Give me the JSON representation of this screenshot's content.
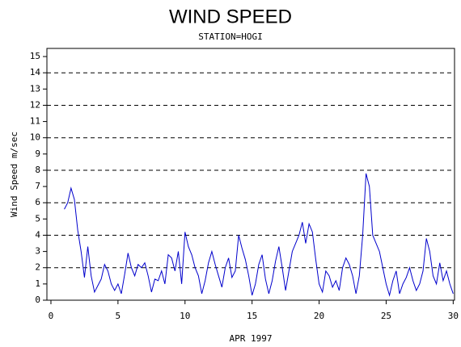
{
  "chart_data": {
    "type": "line",
    "title": "WIND SPEED",
    "subtitle": "STATION=HOGI",
    "y_label": "Wind Speed m/sec",
    "x_label": "APR 1997",
    "x": [
      1,
      1.25,
      1.5,
      1.75,
      2,
      2.25,
      2.5,
      2.75,
      3,
      3.25,
      3.5,
      3.75,
      4,
      4.25,
      4.5,
      4.75,
      5,
      5.25,
      5.5,
      5.75,
      6,
      6.25,
      6.5,
      6.75,
      7,
      7.25,
      7.5,
      7.75,
      8,
      8.25,
      8.5,
      8.75,
      9,
      9.25,
      9.5,
      9.75,
      10,
      10.25,
      10.5,
      10.75,
      11,
      11.25,
      11.5,
      11.75,
      12,
      12.25,
      12.5,
      12.75,
      13,
      13.25,
      13.5,
      13.75,
      14,
      14.25,
      14.5,
      14.75,
      15,
      15.25,
      15.5,
      15.75,
      16,
      16.25,
      16.5,
      16.75,
      17,
      17.25,
      17.5,
      17.75,
      18,
      18.25,
      18.5,
      18.75,
      19,
      19.25,
      19.5,
      19.75,
      20,
      20.25,
      20.5,
      20.75,
      21,
      21.25,
      21.5,
      21.75,
      22,
      22.25,
      22.5,
      22.75,
      23,
      23.25,
      23.5,
      23.75,
      24,
      24.25,
      24.5,
      24.75,
      25,
      25.25,
      25.5,
      25.75,
      26,
      26.25,
      26.5,
      26.75,
      27,
      27.25,
      27.5,
      27.75,
      28,
      28.25,
      28.5,
      28.75,
      29,
      29.25,
      29.5,
      29.75,
      30
    ],
    "series": [
      {
        "name": "Wind Speed",
        "color": "#0000cc",
        "values": [
          5.6,
          6.0,
          6.9,
          6.2,
          4.3,
          3.0,
          1.4,
          3.3,
          1.5,
          0.5,
          0.9,
          1.3,
          2.2,
          1.8,
          1.0,
          0.6,
          1.0,
          0.4,
          1.6,
          2.9,
          2.0,
          1.5,
          2.2,
          2.0,
          2.3,
          1.5,
          0.5,
          1.3,
          1.2,
          1.8,
          1.0,
          2.8,
          2.6,
          1.8,
          3.0,
          1.0,
          4.2,
          3.3,
          2.8,
          2.0,
          1.5,
          0.4,
          1.2,
          2.3,
          3.0,
          2.2,
          1.5,
          0.8,
          2.0,
          2.6,
          1.4,
          1.8,
          4.0,
          3.2,
          2.5,
          1.5,
          0.3,
          1.0,
          2.2,
          2.8,
          1.3,
          0.4,
          1.2,
          2.4,
          3.3,
          2.0,
          0.6,
          1.8,
          3.0,
          3.5,
          4.0,
          4.8,
          3.5,
          4.7,
          4.2,
          2.5,
          1.0,
          0.5,
          1.8,
          1.5,
          0.8,
          1.2,
          0.6,
          2.0,
          2.6,
          2.2,
          1.5,
          0.4,
          1.5,
          4.0,
          7.8,
          7.0,
          4.0,
          3.5,
          3.0,
          2.0,
          1.0,
          0.3,
          1.2,
          1.8,
          0.4,
          1.0,
          1.4,
          2.0,
          1.2,
          0.6,
          1.0,
          1.8,
          3.8,
          3.0,
          1.5,
          1.0,
          2.3,
          1.2,
          1.8,
          1.0,
          0.4
        ]
      }
    ],
    "xlim": [
      -0.3,
      30.1
    ],
    "xticks": [
      0,
      5,
      10,
      15,
      20,
      25,
      30
    ],
    "ylim": [
      0,
      15.5
    ],
    "yticks": [
      0,
      1,
      2,
      3,
      4,
      5,
      6,
      7,
      8,
      9,
      10,
      11,
      12,
      13,
      14,
      15
    ],
    "grid": true
  }
}
